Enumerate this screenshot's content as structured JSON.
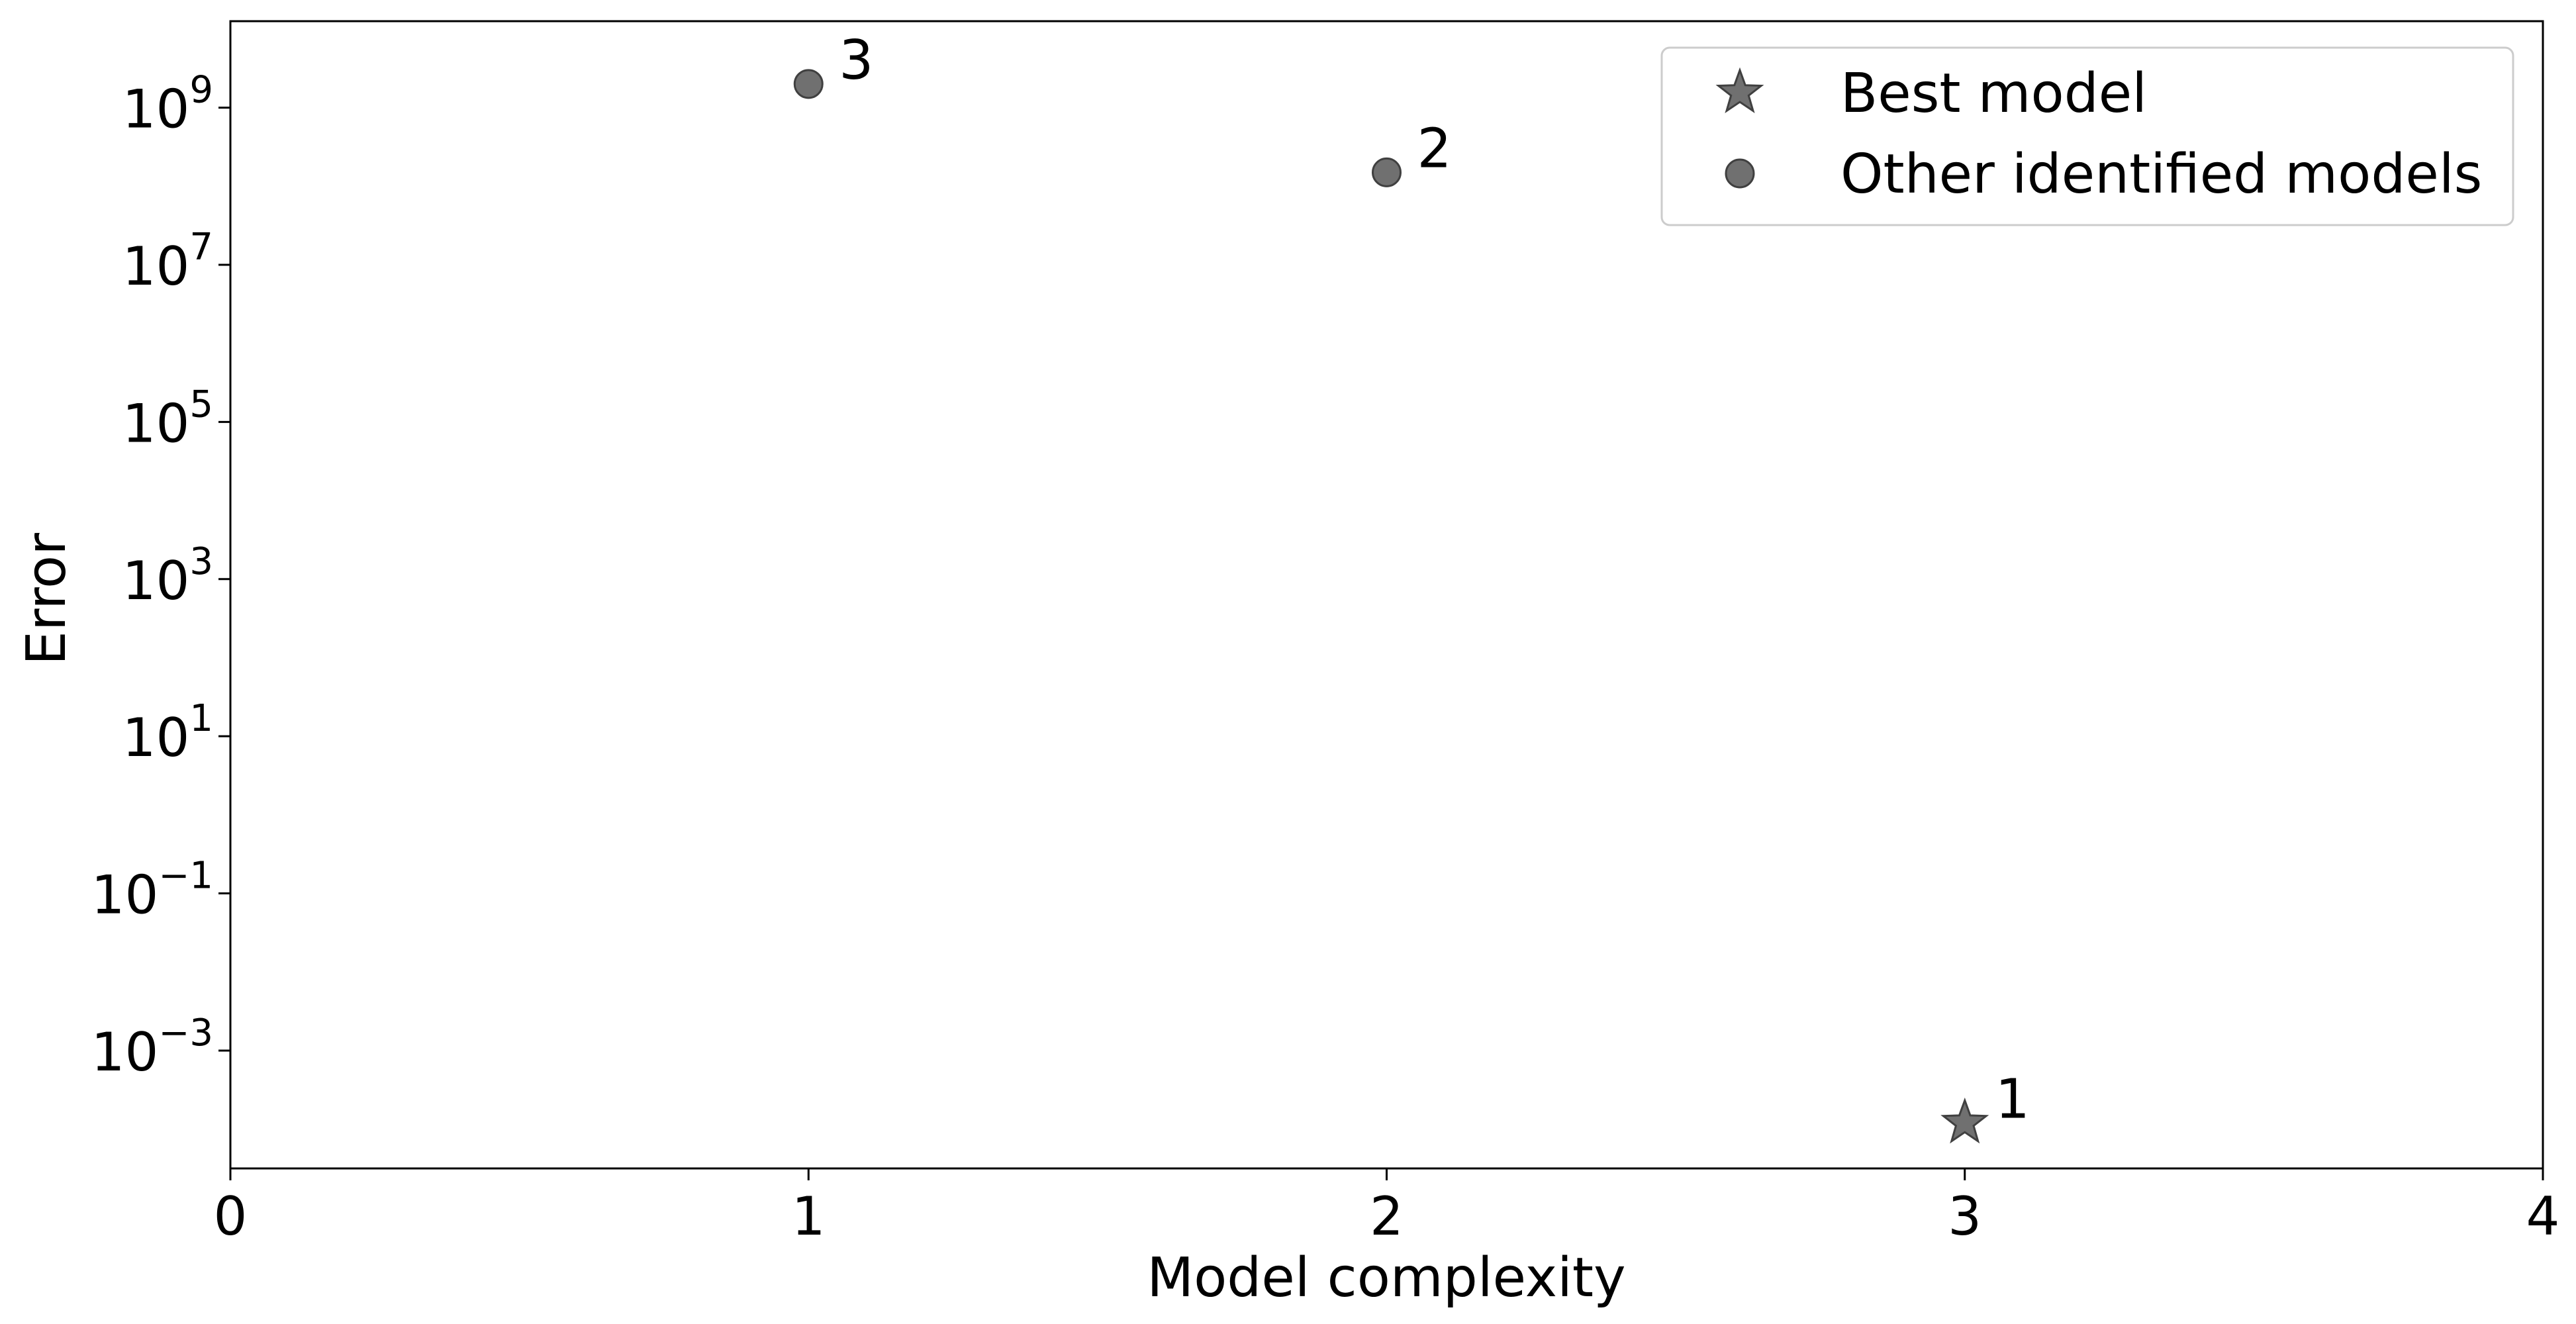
{
  "chart_data": {
    "type": "scatter",
    "xlabel": "Model complexity",
    "ylabel": "Error",
    "xlim": [
      0,
      4
    ],
    "ylim_log10": [
      -4.5,
      10.1
    ],
    "yscale": "log",
    "grid": false,
    "legend_position": "top-right",
    "x_ticks": [
      "0",
      "1",
      "2",
      "3",
      "4"
    ],
    "y_ticks": [
      {
        "base": "10",
        "exp": "−3",
        "log10": -3
      },
      {
        "base": "10",
        "exp": "−1",
        "log10": -1
      },
      {
        "base": "10",
        "exp": "1",
        "log10": 1
      },
      {
        "base": "10",
        "exp": "3",
        "log10": 3
      },
      {
        "base": "10",
        "exp": "5",
        "log10": 5
      },
      {
        "base": "10",
        "exp": "7",
        "log10": 7
      },
      {
        "base": "10",
        "exp": "9",
        "log10": 9
      }
    ],
    "series": [
      {
        "name": "Best model",
        "marker": "star",
        "color": "#707070",
        "points": [
          {
            "x": 3,
            "y": 0.00012,
            "label": "1"
          }
        ]
      },
      {
        "name": "Other identified models",
        "marker": "circle",
        "color": "#707070",
        "points": [
          {
            "x": 2,
            "y": 150000000,
            "label": "2"
          },
          {
            "x": 1,
            "y": 2000000000,
            "label": "3"
          }
        ]
      }
    ]
  }
}
